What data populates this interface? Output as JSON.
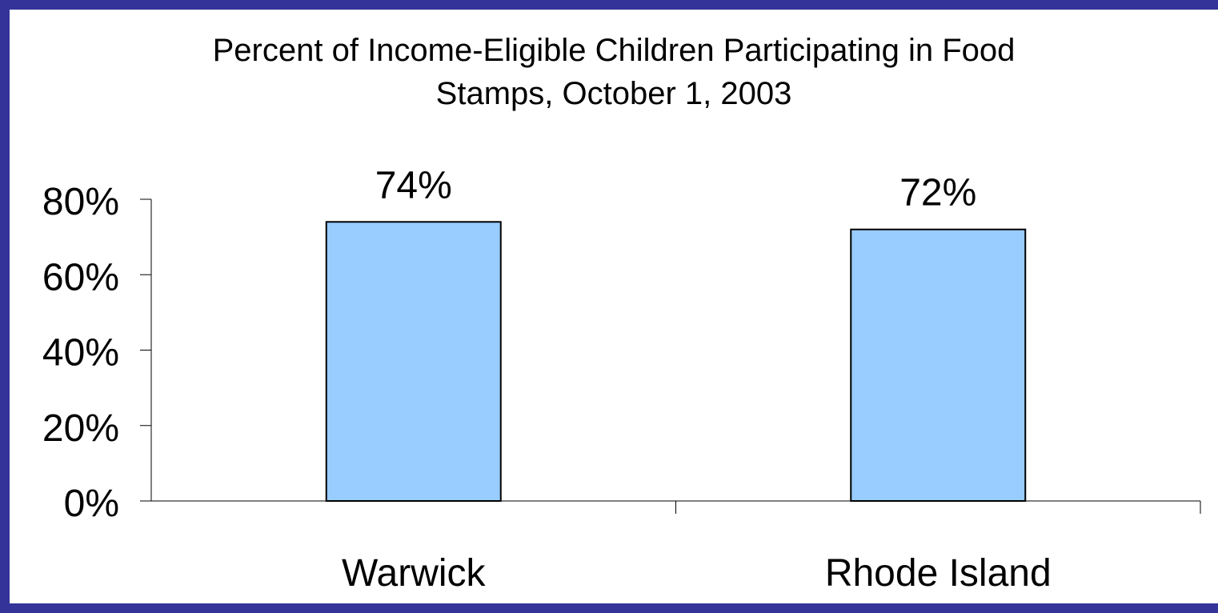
{
  "chart_data": {
    "type": "bar",
    "title_lines": [
      "Percent of Income-Eligible Children Participating in Food",
      "Stamps, October 1, 2003"
    ],
    "categories": [
      "Warwick",
      "Rhode Island"
    ],
    "values": [
      74,
      72
    ],
    "data_labels": [
      "74%",
      "72%"
    ],
    "ylim": [
      0,
      80
    ],
    "yticks": [
      0,
      20,
      40,
      60,
      80
    ],
    "ytick_labels": [
      "0%",
      "20%",
      "40%",
      "60%",
      "80%"
    ],
    "grid": false,
    "legend": "none",
    "colors": {
      "bar_fill": "#99CCFF",
      "bar_stroke": "#000000",
      "frame": "#333399"
    }
  }
}
